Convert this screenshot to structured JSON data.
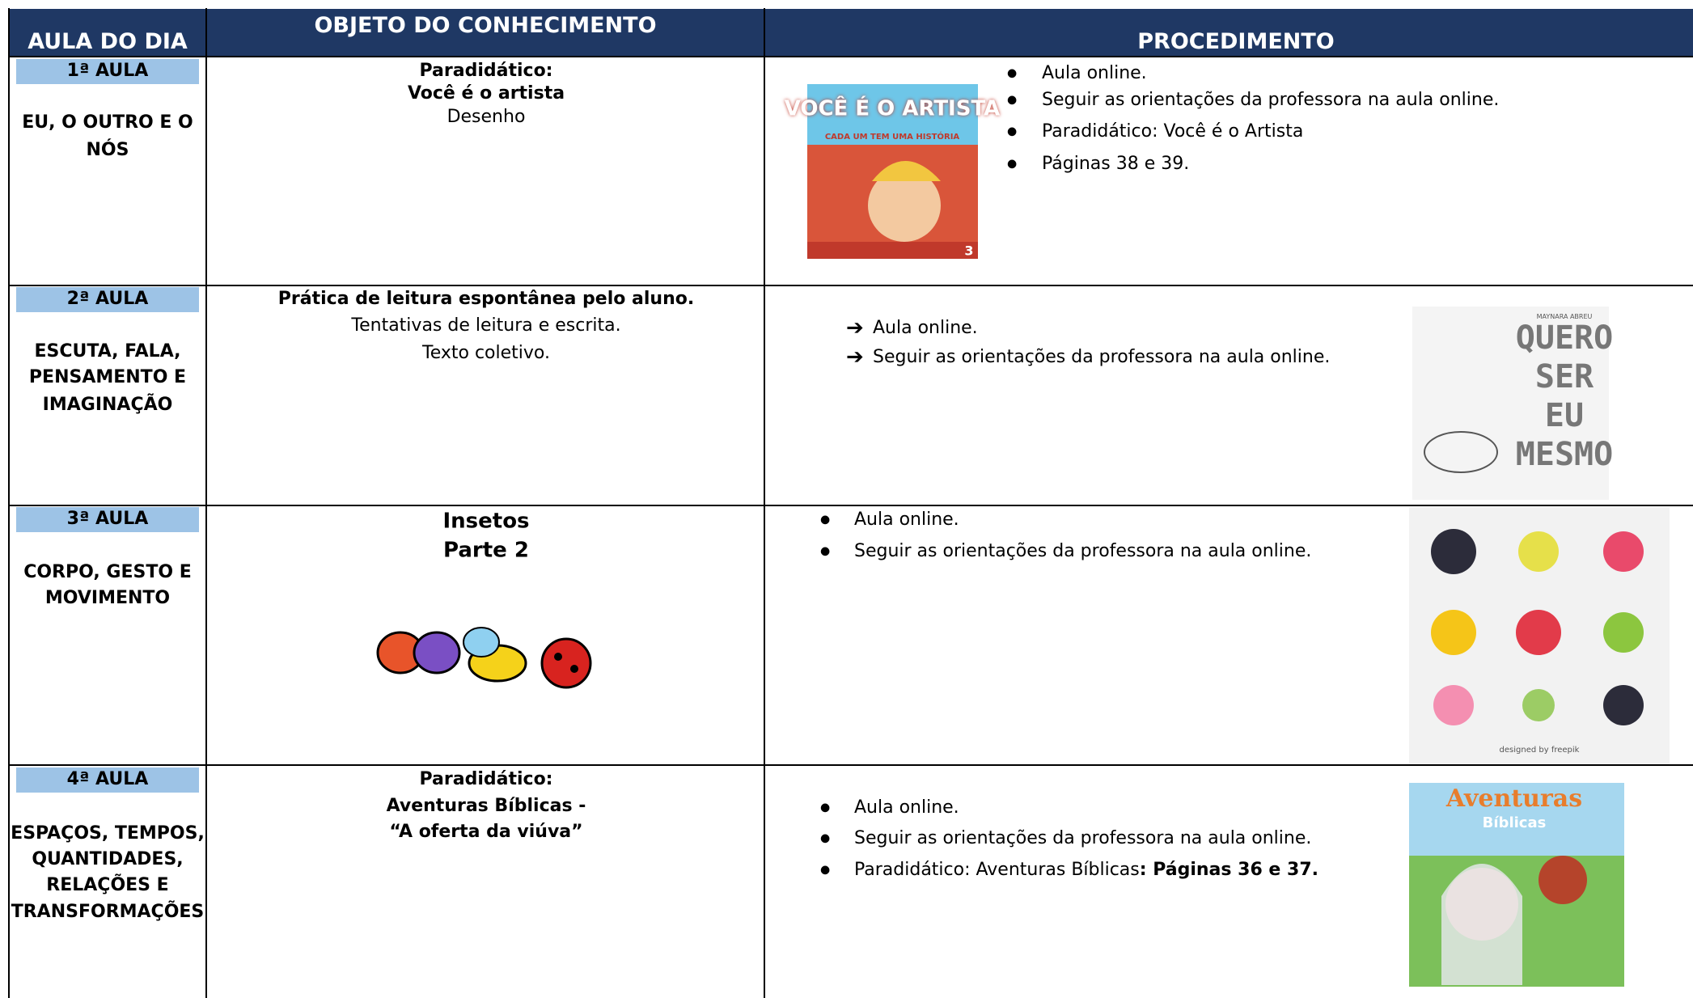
{
  "header": {
    "col1": "AULA DO DIA",
    "col2": "OBJETO DO CONHECIMENTO",
    "col3": "PROCEDIMENTO"
  },
  "rows": [
    {
      "aula": "1ª AULA",
      "campo": [
        "EU, O OUTRO E O",
        "NÓS"
      ],
      "objeto": [
        "Paradidático:",
        "Você é o artista",
        "Desenho"
      ],
      "procedimento": [
        "Aula online.",
        "Seguir as orientações da professora na aula online.",
        "Paradidático:  Você é o Artista",
        "Páginas 38 e 39."
      ],
      "image_text": [
        "VOCÊ É O ARTISTA",
        "CADA UM TEM UMA HISTÓRIA",
        "3"
      ]
    },
    {
      "aula": "2ª AULA",
      "campo": [
        "ESCUTA, FALA,",
        "PENSAMENTO E",
        "IMAGINAÇÃO"
      ],
      "objeto": [
        "Prática de leitura espontânea pelo aluno.",
        "Tentativas de leitura e escrita.",
        "Texto coletivo."
      ],
      "procedimento": [
        "Aula online.",
        "Seguir as orientações da professora na aula online."
      ],
      "image_text": [
        "MAYNARA ABREU",
        "QUERO",
        "SER",
        "EU",
        "MESMO"
      ]
    },
    {
      "aula": "3ª AULA",
      "campo": [
        "CORPO, GESTO E",
        "MOVIMENTO"
      ],
      "objeto": [
        "Insetos",
        "Parte 2"
      ],
      "procedimento": [
        "Aula online.",
        "Seguir as orientações da professora na aula online."
      ],
      "image_text": [
        "designed by freepik"
      ]
    },
    {
      "aula": "4ª AULA",
      "campo": [
        "ESPAÇOS, TEMPOS,",
        "QUANTIDADES,",
        "RELAÇÕES E",
        "TRANSFORMAÇÕES"
      ],
      "objeto": [
        "Paradidático:",
        "Aventuras Bíblicas  -",
        "“A oferta da viúva”"
      ],
      "procedimento": [
        "Aula online.",
        "Seguir as orientações da professora na aula online.",
        "Paradidático: Aventuras Bíblicas"
      ],
      "procedimento_bold": ": Páginas 36 e 37.",
      "image_text": [
        "Aventuras",
        "Bíblicas"
      ]
    }
  ]
}
